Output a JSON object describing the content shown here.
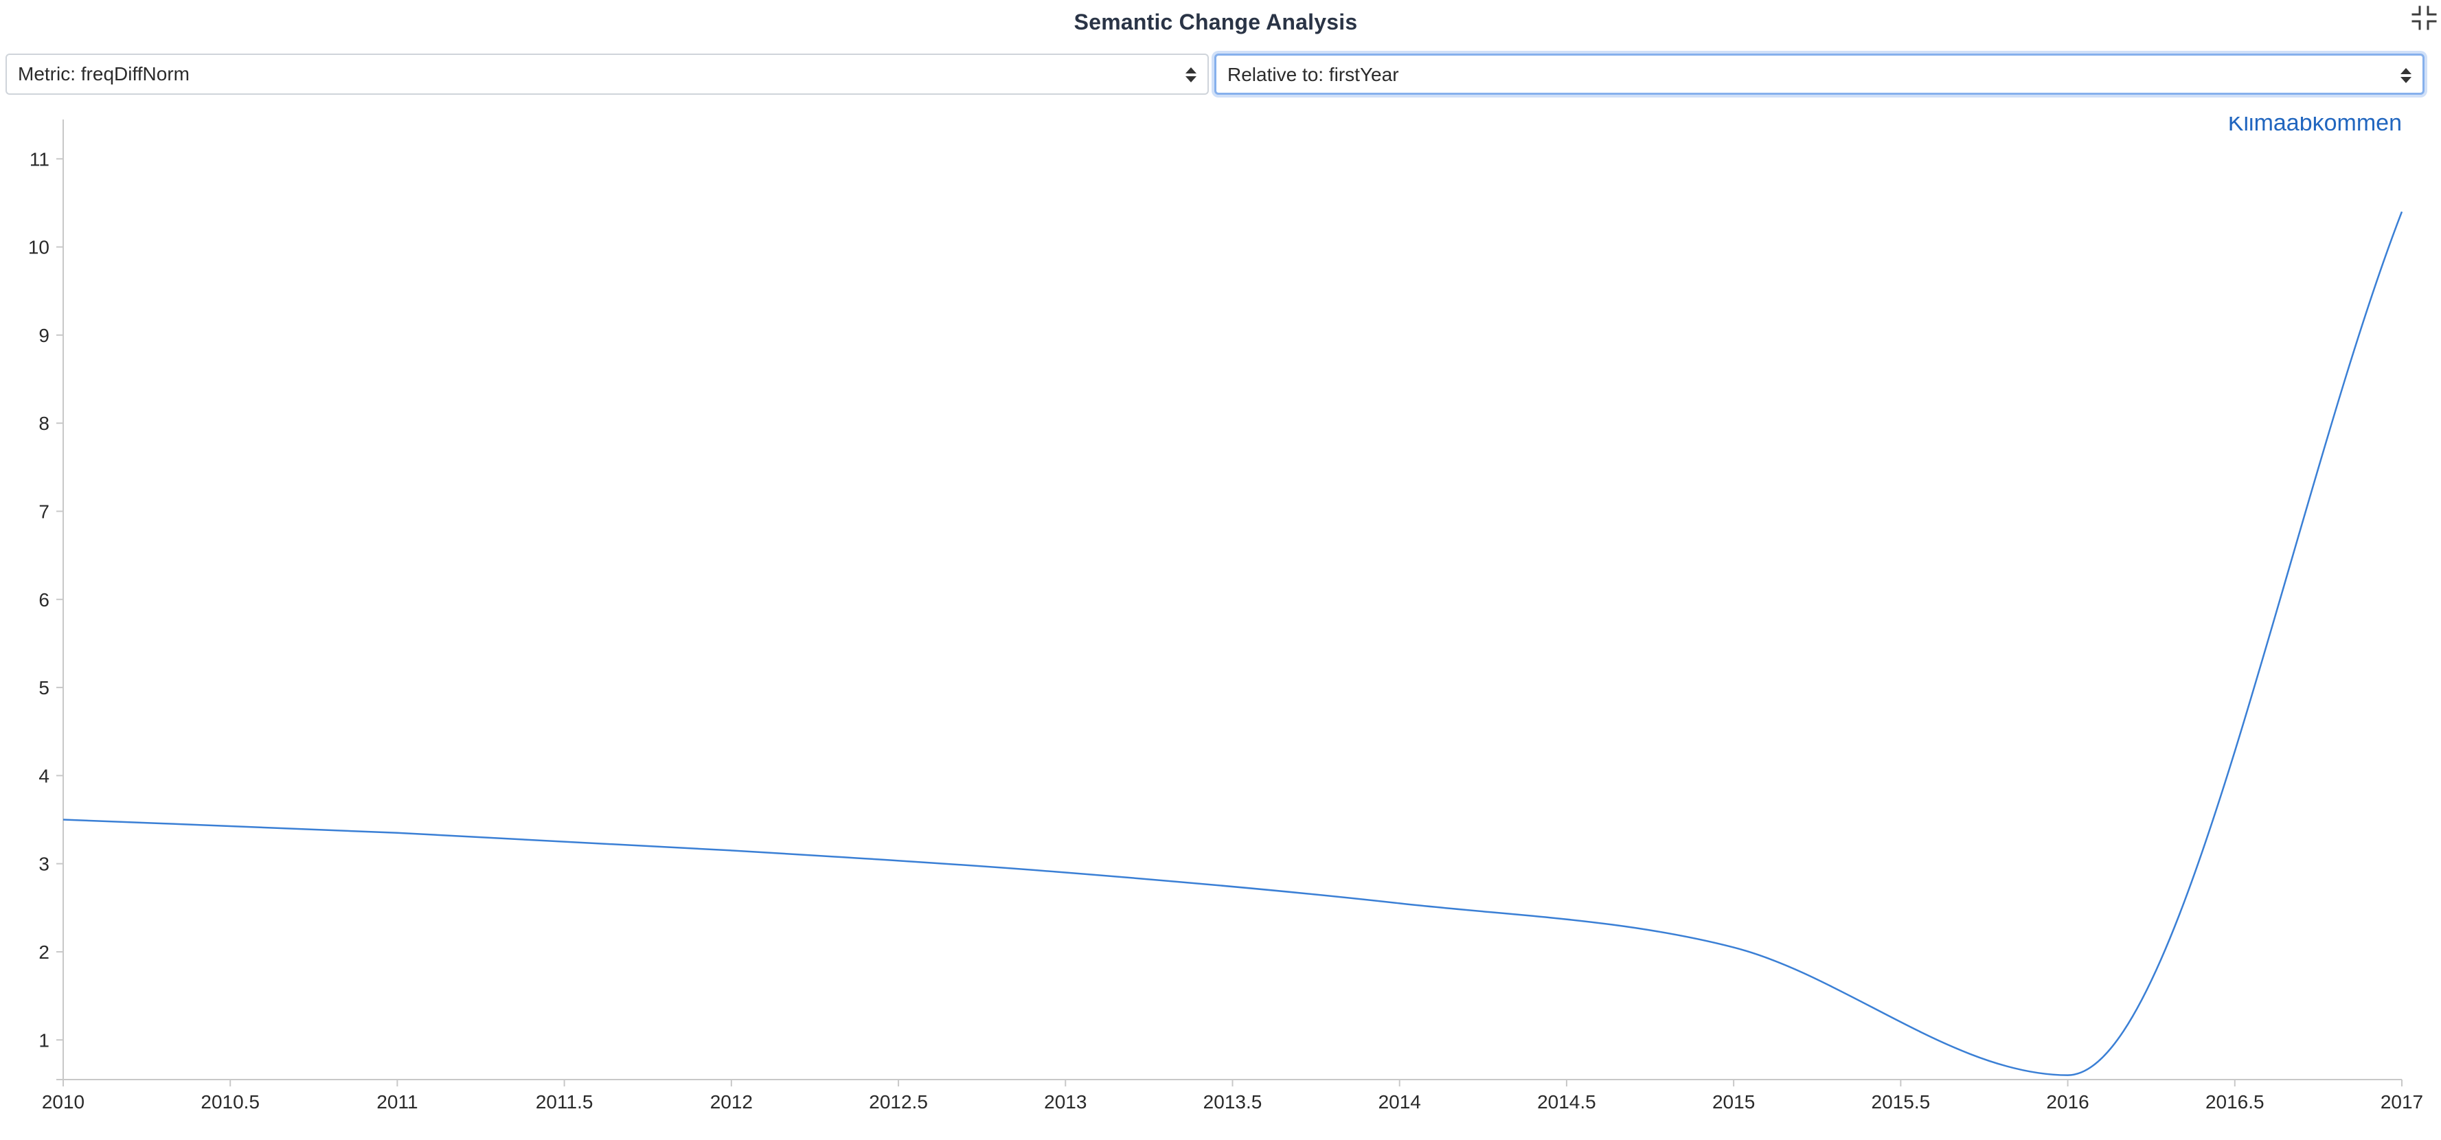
{
  "page": {
    "title": "Semantic Change Analysis"
  },
  "controls": {
    "metric_select": "Metric: freqDiffNorm",
    "relative_select": "Relative to: firstYear"
  },
  "icons": {
    "collapse": "collapse-icon",
    "select_arrow": "up-down-arrows-icon"
  },
  "chart_data": {
    "type": "line",
    "title": "",
    "xlabel": "",
    "ylabel": "",
    "xlim": [
      2010,
      2017
    ],
    "ylim": [
      0.55,
      11.4
    ],
    "x_ticks": [
      2010,
      2010.5,
      2011,
      2011.5,
      2012,
      2012.5,
      2013,
      2013.5,
      2014,
      2014.5,
      2015,
      2015.5,
      2016,
      2016.5,
      2017
    ],
    "y_ticks": [
      1,
      2,
      3,
      4,
      5,
      6,
      7,
      8,
      9,
      10,
      11
    ],
    "grid": false,
    "legend_position": "top-right",
    "series": [
      {
        "name": "Klimaabkommen",
        "color": "#3a7fd5",
        "x": [
          2010,
          2011,
          2012,
          2013,
          2014,
          2015,
          2016,
          2017
        ],
        "y": [
          3.5,
          3.35,
          3.15,
          2.9,
          2.55,
          2.05,
          0.6,
          10.4
        ]
      }
    ]
  }
}
